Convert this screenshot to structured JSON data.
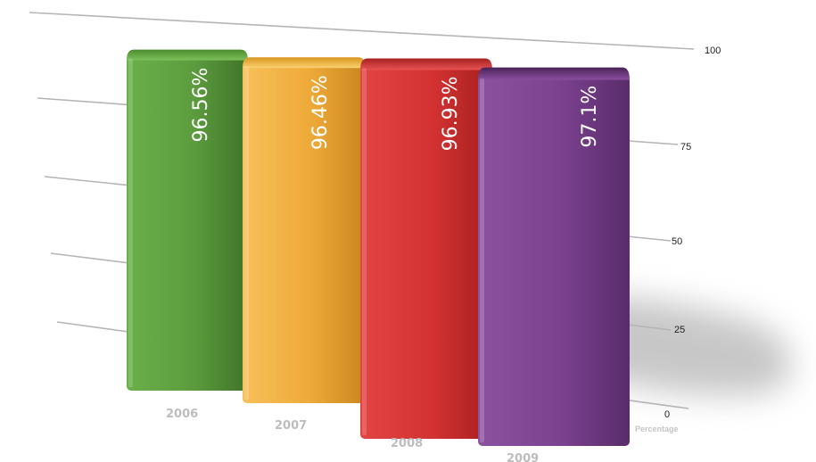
{
  "chart_data": {
    "type": "bar",
    "categories": [
      "2006",
      "2007",
      "2008",
      "2009"
    ],
    "values": [
      96.56,
      96.46,
      96.93,
      97.1
    ],
    "data_labels": [
      "96.56%",
      "96.46%",
      "96.93%",
      "97.1%"
    ],
    "yaxis_title": "Percentage",
    "yticks": [
      "0",
      "25",
      "50",
      "75",
      "100"
    ],
    "ylim": [
      0,
      100
    ],
    "grid": true,
    "colors": [
      "#5a9a3c",
      "#f0ad3a",
      "#d83434",
      "#7d4290"
    ]
  }
}
